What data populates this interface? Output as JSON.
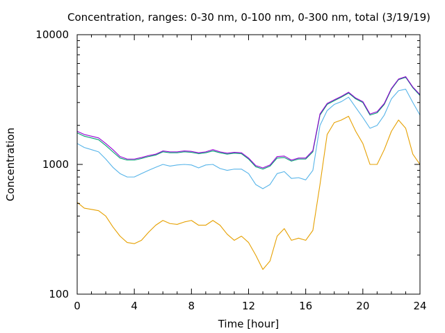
{
  "chart_data": {
    "type": "line",
    "title": "Concentration, ranges: 0-30 nm, 0-100 nm, 0-300 nm, total (3/19/19)",
    "xlabel": "Time [hour]",
    "ylabel": "Concentration",
    "xlim": [
      0,
      24
    ],
    "ylim": [
      100,
      10000
    ],
    "yscale": "log",
    "grid": false,
    "legend": "none",
    "x_ticks": [
      0,
      4,
      8,
      12,
      16,
      20,
      24
    ],
    "x_tick_labels": [
      "0",
      "4",
      "8",
      "12",
      "16",
      "20",
      "24"
    ],
    "y_ticks": [
      100,
      1000,
      10000
    ],
    "y_tick_labels": [
      "100",
      "1000",
      "10000"
    ],
    "x": [
      0,
      0.5,
      1,
      1.5,
      2,
      2.5,
      3,
      3.5,
      4,
      4.5,
      5,
      5.5,
      6,
      6.5,
      7,
      7.5,
      8,
      8.5,
      9,
      9.5,
      10,
      10.5,
      11,
      11.5,
      12,
      12.5,
      13,
      13.5,
      14,
      14.5,
      15,
      15.5,
      16,
      16.5,
      17,
      17.5,
      18,
      18.5,
      19,
      19.5,
      20,
      20.5,
      21,
      21.5,
      22,
      22.5,
      23,
      23.5,
      24
    ],
    "series": [
      {
        "color": "#e6a000",
        "values": [
          510,
          460,
          450,
          440,
          400,
          330,
          280,
          250,
          245,
          260,
          300,
          340,
          370,
          350,
          345,
          360,
          370,
          340,
          340,
          370,
          340,
          290,
          260,
          280,
          250,
          200,
          155,
          180,
          280,
          320,
          260,
          270,
          260,
          310,
          700,
          1700,
          2100,
          2200,
          2350,
          1800,
          1450,
          1000,
          1000,
          1300,
          1800,
          2200,
          1900,
          1200,
          1000
        ]
      },
      {
        "color": "#56b4e9",
        "values": [
          1450,
          1350,
          1300,
          1250,
          1100,
          950,
          850,
          800,
          800,
          850,
          900,
          950,
          1000,
          970,
          990,
          1000,
          990,
          940,
          990,
          1000,
          930,
          900,
          920,
          920,
          850,
          700,
          650,
          700,
          850,
          880,
          780,
          790,
          760,
          900,
          2000,
          2600,
          2900,
          3050,
          3300,
          2750,
          2300,
          1900,
          2000,
          2400,
          3200,
          3700,
          3800,
          3000,
          2400
        ]
      },
      {
        "color": "#009e73",
        "values": [
          1750,
          1650,
          1600,
          1550,
          1400,
          1250,
          1120,
          1080,
          1080,
          1110,
          1150,
          1180,
          1250,
          1230,
          1230,
          1250,
          1240,
          1210,
          1230,
          1270,
          1230,
          1200,
          1220,
          1210,
          1100,
          960,
          920,
          970,
          1120,
          1130,
          1060,
          1100,
          1100,
          1250,
          2400,
          2900,
          3100,
          3300,
          3550,
          3200,
          3000,
          2400,
          2500,
          2900,
          3800,
          4500,
          4700,
          3900,
          3400
        ]
      },
      {
        "color": "#9400d3",
        "values": [
          1800,
          1700,
          1650,
          1600,
          1450,
          1300,
          1150,
          1100,
          1100,
          1130,
          1170,
          1200,
          1270,
          1250,
          1250,
          1270,
          1260,
          1230,
          1250,
          1300,
          1250,
          1220,
          1240,
          1230,
          1120,
          980,
          940,
          990,
          1150,
          1160,
          1080,
          1120,
          1120,
          1280,
          2450,
          2950,
          3150,
          3350,
          3600,
          3250,
          3050,
          2450,
          2550,
          2950,
          3850,
          4550,
          4750,
          3950,
          3450
        ]
      }
    ]
  }
}
